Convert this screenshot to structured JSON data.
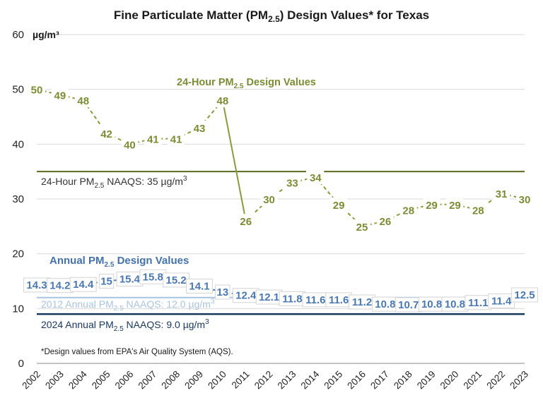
{
  "chart_data": {
    "type": "line",
    "title_prefix": "Fine Particulate Matter (PM",
    "title_sub": "2.5",
    "title_suffix": ") Design Values* for Texas",
    "ylabel": "µg/m³",
    "ylim": [
      0,
      60
    ],
    "yticks": [
      "0",
      "10",
      "20",
      "30",
      "40",
      "50",
      "60"
    ],
    "grid": true,
    "categories": [
      "2002",
      "2003",
      "2004",
      "2005",
      "2006",
      "2007",
      "2008",
      "2009",
      "2010",
      "2011",
      "2012",
      "2013",
      "2014",
      "2015",
      "2016",
      "2017",
      "2018",
      "2019",
      "2020",
      "2021",
      "2022",
      "2023"
    ],
    "series": [
      {
        "name": "24-Hour PM2.5 Design Values",
        "label_prefix": "24-Hour PM",
        "label_sub": "2.5",
        "label_suffix": " Design Values",
        "color": "#8a9a3f",
        "labels": [
          "50",
          "49",
          "48",
          "42",
          "40",
          "41",
          "41",
          "43",
          "48",
          "26",
          "30",
          "33",
          "34",
          "29",
          "25",
          "26",
          "28",
          "29",
          "29",
          "28",
          "31",
          "30"
        ],
        "values": [
          50,
          49,
          48,
          42,
          40,
          41,
          41,
          43,
          48,
          26,
          30,
          33,
          34,
          29,
          25,
          26,
          28,
          29,
          29,
          28,
          31,
          30
        ]
      },
      {
        "name": "Annual PM2.5 Design Values",
        "label_prefix": "Annual PM",
        "label_sub": "2.5",
        "label_suffix": " Design Values",
        "color": "#4a78b0",
        "labels": [
          "14.3",
          "14.2",
          "14.4",
          "15",
          "15.4",
          "15.8",
          "15.2",
          "14.1",
          "13",
          "12.4",
          "12.1",
          "11.8",
          "11.6",
          "11.6",
          "11.2",
          "10.8",
          "10.7",
          "10.8",
          "10.8",
          "11.1",
          "11.4",
          "12.5"
        ],
        "values": [
          14.3,
          14.2,
          14.4,
          15,
          15.4,
          15.8,
          15.2,
          14.1,
          13,
          12.4,
          12.1,
          11.8,
          11.6,
          11.6,
          11.2,
          10.8,
          10.7,
          10.8,
          10.8,
          11.1,
          11.4,
          12.5
        ]
      }
    ],
    "reference_lines": [
      {
        "value": 35,
        "color": "#5c6b1f",
        "label_prefix": "24-Hour PM",
        "label_sub": "2.5",
        "label_suffix": " NAAQS: 35 µg/m",
        "label_sup": "3"
      },
      {
        "value": 12,
        "color": "#a9c4df",
        "label_prefix": "2012 Annual PM",
        "label_sub": "2.5",
        "label_suffix": " NAAQS: 12.0 µg/m",
        "label_sup": "3"
      },
      {
        "value": 9,
        "color": "#17365d",
        "label_prefix": "2024 Annual PM",
        "label_sub": "2.5",
        "label_suffix": " NAAQS: 9.0 µg/m",
        "label_sup": "3"
      }
    ],
    "footnote": "*Design values from EPA's Air Quality System (AQS)."
  }
}
